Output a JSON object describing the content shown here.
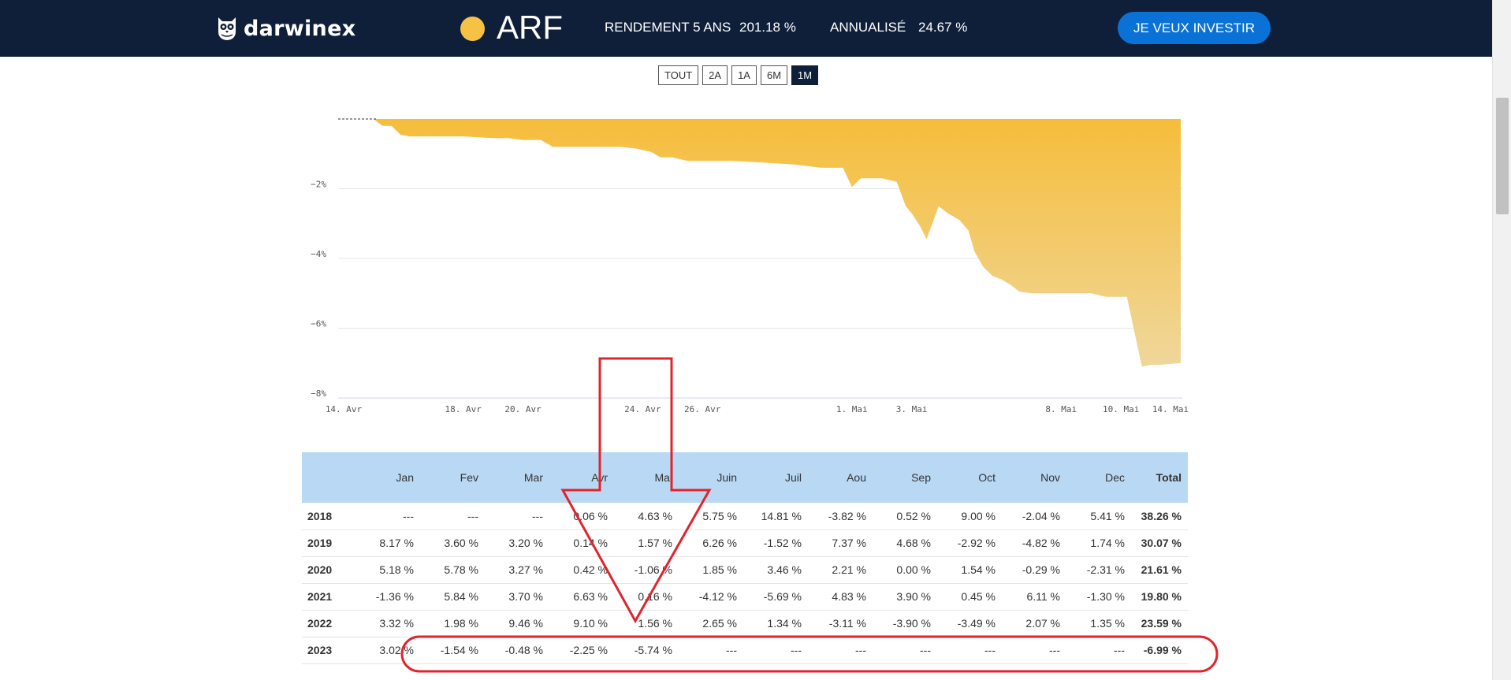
{
  "header": {
    "brand": "darwinex",
    "ticker": "ARF",
    "return_5y_label": "RENDEMENT 5 ANS",
    "return_5y_value": "201.18 %",
    "annualized_label": "ANNUALISÉ",
    "annualized_value": "24.67 %",
    "invest_button": "JE VEUX INVESTIR",
    "ticker_dot_color": "#f6c244"
  },
  "ranges": [
    "TOUT",
    "2A",
    "1A",
    "6M",
    "1M"
  ],
  "active_range": "1M",
  "chart_data": {
    "type": "area",
    "y_ticks": [
      "−2%",
      "−4%",
      "−6%",
      "−8%"
    ],
    "x_ticks": [
      "14. Avr",
      "18. Avr",
      "20. Avr",
      "24. Avr",
      "26. Avr",
      "1. Mai",
      "3. Mai",
      "8. Mai",
      "10. Mai",
      "14. Mai"
    ],
    "ylim": [
      -8,
      0
    ],
    "fill_color_top": "#f6bd3b",
    "fill_color_bottom": "#efd79b",
    "grid": true,
    "points": [
      [
        0.0,
        0
      ],
      [
        1.0,
        0
      ],
      [
        1.3,
        -0.2
      ],
      [
        1.6,
        -0.2
      ],
      [
        1.9,
        -0.45
      ],
      [
        2.2,
        -0.5
      ],
      [
        2.5,
        -0.5
      ],
      [
        3.0,
        -0.5
      ],
      [
        4.0,
        -0.5
      ],
      [
        5.0,
        -0.55
      ],
      [
        5.5,
        -0.55
      ],
      [
        6.0,
        -0.6
      ],
      [
        6.6,
        -0.6
      ],
      [
        7.0,
        -0.8
      ],
      [
        8.0,
        -0.8
      ],
      [
        8.7,
        -0.8
      ],
      [
        9.3,
        -0.8
      ],
      [
        9.8,
        -0.85
      ],
      [
        10.3,
        -0.95
      ],
      [
        10.6,
        -1.1
      ],
      [
        11.0,
        -1.1
      ],
      [
        11.5,
        -1.2
      ],
      [
        12.0,
        -1.2
      ],
      [
        13.0,
        -1.2
      ],
      [
        14.0,
        -1.25
      ],
      [
        15.0,
        -1.3
      ],
      [
        16.0,
        -1.4
      ],
      [
        16.7,
        -1.4
      ],
      [
        17.0,
        -1.95
      ],
      [
        17.3,
        -1.7
      ],
      [
        18.0,
        -1.7
      ],
      [
        18.5,
        -1.8
      ],
      [
        18.8,
        -2.5
      ],
      [
        19.0,
        -2.7
      ],
      [
        19.3,
        -3.1
      ],
      [
        19.5,
        -3.45
      ],
      [
        19.9,
        -2.5
      ],
      [
        20.2,
        -2.7
      ],
      [
        20.6,
        -2.9
      ],
      [
        20.9,
        -3.2
      ],
      [
        21.1,
        -3.8
      ],
      [
        21.4,
        -4.25
      ],
      [
        21.7,
        -4.5
      ],
      [
        22.0,
        -4.6
      ],
      [
        22.3,
        -4.75
      ],
      [
        22.6,
        -4.95
      ],
      [
        23.0,
        -5.0
      ],
      [
        24.0,
        -5.0
      ],
      [
        25.0,
        -5.0
      ],
      [
        25.5,
        -5.1
      ],
      [
        26.0,
        -5.1
      ],
      [
        26.2,
        -5.1
      ],
      [
        26.7,
        -7.1
      ],
      [
        27.0,
        -7.05
      ],
      [
        27.3,
        -7.05
      ],
      [
        28.0,
        -7.0
      ]
    ]
  },
  "table": {
    "columns": [
      "",
      "Jan",
      "Fev",
      "Mar",
      "Avr",
      "Mai",
      "Juin",
      "Juil",
      "Aou",
      "Sep",
      "Oct",
      "Nov",
      "Dec",
      "Total"
    ],
    "rows": [
      {
        "year": "2018",
        "values": [
          "---",
          "---",
          "---",
          "0.06 %",
          "4.63 %",
          "5.75 %",
          "14.81 %",
          "-3.82 %",
          "0.52 %",
          "9.00 %",
          "-2.04 %",
          "5.41 %"
        ],
        "total": "38.26 %"
      },
      {
        "year": "2019",
        "values": [
          "8.17 %",
          "3.60 %",
          "3.20 %",
          "0.14 %",
          "1.57 %",
          "6.26 %",
          "-1.52 %",
          "7.37 %",
          "4.68 %",
          "-2.92 %",
          "-4.82 %",
          "1.74 %"
        ],
        "total": "30.07 %"
      },
      {
        "year": "2020",
        "values": [
          "5.18 %",
          "5.78 %",
          "3.27 %",
          "0.42 %",
          "-1.06 %",
          "1.85 %",
          "3.46 %",
          "2.21 %",
          "0.00 %",
          "1.54 %",
          "-0.29 %",
          "-2.31 %"
        ],
        "total": "21.61 %"
      },
      {
        "year": "2021",
        "values": [
          "-1.36 %",
          "5.84 %",
          "3.70 %",
          "6.63 %",
          "0.16 %",
          "-4.12 %",
          "-5.69 %",
          "4.83 %",
          "3.90 %",
          "0.45 %",
          "6.11 %",
          "-1.30 %"
        ],
        "total": "19.80 %"
      },
      {
        "year": "2022",
        "values": [
          "3.32 %",
          "1.98 %",
          "9.46 %",
          "9.10 %",
          "1.56 %",
          "2.65 %",
          "1.34 %",
          "-3.11 %",
          "-3.90 %",
          "-3.49 %",
          "2.07 %",
          "1.35 %"
        ],
        "total": "23.59 %"
      },
      {
        "year": "2023",
        "values": [
          "3.02 %",
          "-1.54 %",
          "-0.48 %",
          "-2.25 %",
          "-5.74 %",
          "---",
          "---",
          "---",
          "---",
          "---",
          "---",
          "---"
        ],
        "total": "-6.99 %"
      }
    ]
  },
  "annotation_color": "#e0242c"
}
